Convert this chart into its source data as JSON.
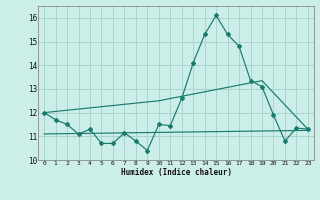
{
  "xlabel": "Humidex (Indice chaleur)",
  "ylabel": "",
  "background_color": "#cceee8",
  "grid_color": "#aad4ce",
  "line_color": "#1a7a6e",
  "xlim": [
    -0.5,
    23.5
  ],
  "ylim": [
    10.0,
    16.5
  ],
  "yticks": [
    10,
    11,
    12,
    13,
    14,
    15,
    16
  ],
  "xticks": [
    0,
    1,
    2,
    3,
    4,
    5,
    6,
    7,
    8,
    9,
    10,
    11,
    12,
    13,
    14,
    15,
    16,
    17,
    18,
    19,
    20,
    21,
    22,
    23
  ],
  "line1_x": [
    0,
    1,
    2,
    3,
    4,
    5,
    6,
    7,
    8,
    9,
    10,
    11,
    12,
    13,
    14,
    15,
    16,
    17,
    18,
    19,
    20,
    21,
    22,
    23
  ],
  "line1_y": [
    12.0,
    11.7,
    11.5,
    11.1,
    11.3,
    10.7,
    10.7,
    11.15,
    10.8,
    10.4,
    11.5,
    11.45,
    12.6,
    14.1,
    15.3,
    16.1,
    15.3,
    14.8,
    13.35,
    13.1,
    11.9,
    10.8,
    11.35,
    11.3
  ],
  "line2_x": [
    0,
    10,
    19,
    23
  ],
  "line2_y": [
    12.0,
    12.5,
    13.35,
    11.3
  ],
  "line3_x": [
    0,
    23
  ],
  "line3_y": [
    11.1,
    11.25
  ]
}
